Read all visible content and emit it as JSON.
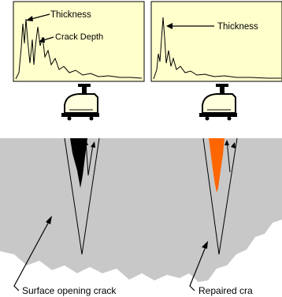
{
  "colors": {
    "background": "#ffffff",
    "panel_fill": "#ffffcc",
    "concrete": "#c8c8c8",
    "crack_open": "#000000",
    "crack_repaired": "#ff6600",
    "transducer": "#ffffdd"
  },
  "left_panel": {
    "peak_label_1": "Thickness",
    "peak_label_2": "Crack Depth"
  },
  "right_panel": {
    "peak_label_1": "Thickness"
  },
  "captions": {
    "left": "Surface opening crack",
    "right": "Repaired cra"
  }
}
